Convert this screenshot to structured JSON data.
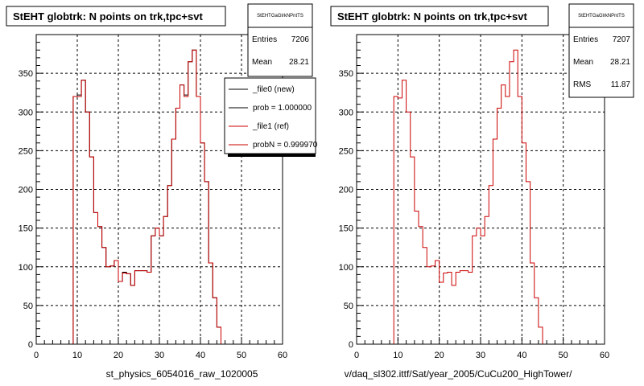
{
  "footer_text": "",
  "chart_data": [
    {
      "type": "histogram",
      "title": "StEHT globtrk: N points on trk,tpc+svt",
      "xlabel": "st_physics_6054016_raw_1020005",
      "ylabel": "",
      "xlim": [
        0,
        60
      ],
      "ylim": [
        0,
        400
      ],
      "x_ticks": [
        0,
        10,
        20,
        30,
        40,
        50,
        60
      ],
      "y_ticks": [
        0,
        50,
        100,
        150,
        200,
        250,
        300,
        350
      ],
      "grid": true,
      "stats": {
        "title": "StEHTGaGlrkNPntTS",
        "entries_label": "Entries",
        "entries": "7206",
        "mean_label": "Mean",
        "mean": "28.21"
      },
      "legend": {
        "placement": "top-right",
        "entries": [
          {
            "label": "_file0 (new)",
            "color": "#000000"
          },
          {
            "label": "prob = 1.000000",
            "color": "#000000"
          },
          {
            "label": "_file1 (ref)",
            "color": "#cc0000"
          },
          {
            "label": "probN = 0.999970",
            "color": "#cc0000"
          }
        ]
      },
      "bin_edges_start": 0,
      "bin_width": 1,
      "series": [
        {
          "name": "_file0 (new)",
          "color": "#000000",
          "values": [
            0,
            0,
            0,
            0,
            0,
            0,
            0,
            0,
            0,
            320,
            322,
            341,
            300,
            242,
            170,
            152,
            125,
            100,
            101,
            108,
            81,
            93,
            91,
            76,
            95,
            95,
            95,
            93,
            140,
            150,
            140,
            165,
            205,
            265,
            305,
            335,
            322,
            365,
            380,
            320,
            260,
            210,
            105,
            60,
            22,
            0,
            0,
            0,
            0,
            0,
            0,
            0,
            0,
            0,
            0,
            0,
            0,
            0,
            0,
            0
          ]
        },
        {
          "name": "_file1 (ref)",
          "color": "#cc0000",
          "values": [
            0,
            0,
            0,
            0,
            0,
            0,
            0,
            0,
            0,
            320,
            320,
            341,
            300,
            242,
            170,
            152,
            125,
            100,
            101,
            108,
            81,
            92,
            91,
            76,
            95,
            95,
            95,
            93,
            140,
            150,
            140,
            165,
            205,
            265,
            305,
            335,
            320,
            365,
            380,
            320,
            260,
            210,
            105,
            60,
            22,
            0,
            0,
            0,
            0,
            0,
            0,
            0,
            0,
            0,
            0,
            0,
            0,
            0,
            0,
            0
          ]
        }
      ]
    },
    {
      "type": "histogram",
      "title": "StEHT globtrk: N points on trk,tpc+svt",
      "xlabel": "v/daq_sl302.ittf/Sat/year_2005/CuCu200_HighTower/",
      "ylabel": "",
      "xlim": [
        0,
        60
      ],
      "ylim": [
        0,
        400
      ],
      "x_ticks": [
        0,
        10,
        20,
        30,
        40,
        50,
        60
      ],
      "y_ticks": [
        0,
        50,
        100,
        150,
        200,
        250,
        300,
        350
      ],
      "grid": true,
      "stats": {
        "title": "StEHTGaGlrkNPntTS",
        "entries_label": "Entries",
        "entries": "7207",
        "mean_label": "Mean",
        "mean": "28.21",
        "rms_label": "RMS",
        "rms": "11.87"
      },
      "bin_edges_start": 0,
      "bin_width": 1,
      "series": [
        {
          "name": "",
          "color": "#cc0000",
          "values": [
            0,
            0,
            0,
            0,
            0,
            0,
            0,
            0,
            0,
            320,
            318,
            341,
            300,
            242,
            172,
            152,
            125,
            100,
            101,
            108,
            80,
            92,
            93,
            76,
            93,
            95,
            95,
            93,
            140,
            150,
            140,
            165,
            205,
            265,
            305,
            335,
            320,
            365,
            380,
            320,
            260,
            210,
            105,
            60,
            22,
            0,
            0,
            0,
            0,
            0,
            0,
            0,
            0,
            0,
            0,
            0,
            0,
            0,
            0,
            0
          ]
        }
      ]
    }
  ]
}
